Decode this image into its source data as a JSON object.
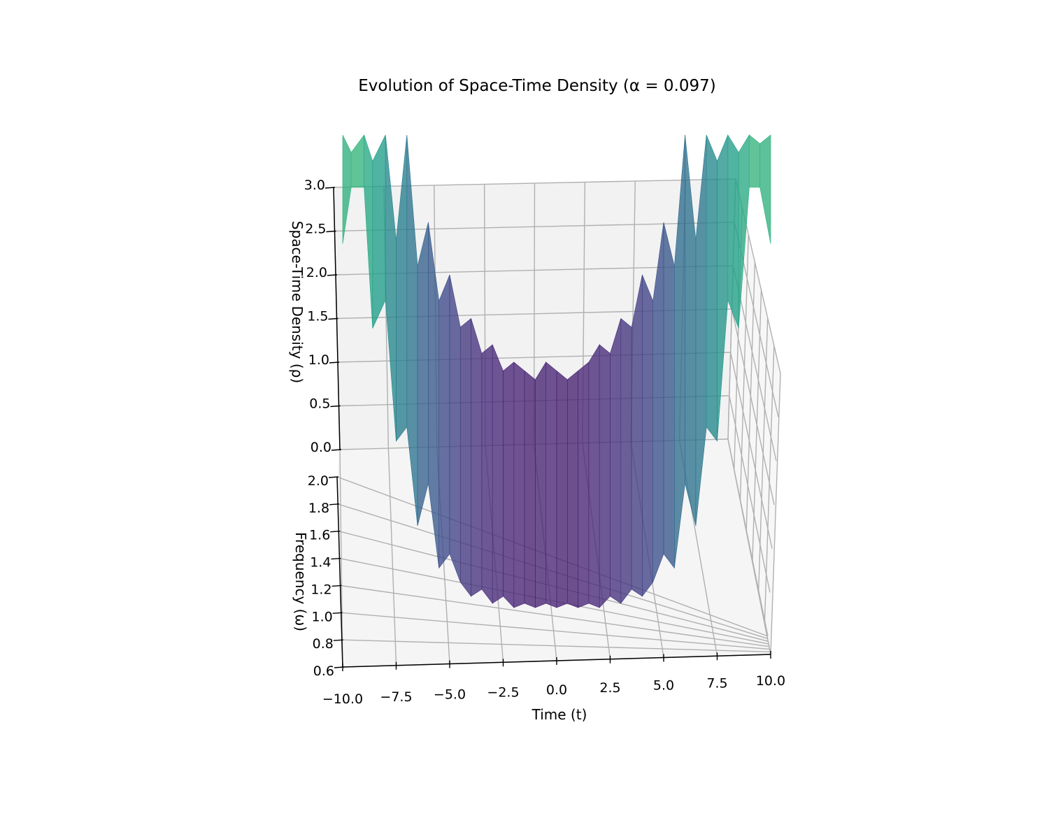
{
  "chart_data": {
    "type": "surface",
    "title": "Evolution of Space-Time Density (α = 0.097)",
    "xlabel": "Time (t)",
    "ylabel": "Frequency (ω)",
    "zlabel": "Space-Time Density (ρ)",
    "xlim": [
      -10,
      10
    ],
    "ylim": [
      0.6,
      2.0
    ],
    "zlim": [
      0,
      3
    ],
    "xticks": [
      "−10.0",
      "−7.5",
      "−5.0",
      "−2.5",
      "0.0",
      "2.5",
      "5.0",
      "7.5",
      "10.0"
    ],
    "yticks": [
      "0.6",
      "0.8",
      "1.0",
      "1.2",
      "1.4",
      "1.6",
      "1.8",
      "2.0"
    ],
    "zticks": [
      "0.0",
      "0.5",
      "1.0",
      "1.5",
      "2.0",
      "2.5",
      "3.0"
    ],
    "colormap": "viridis",
    "grid": true,
    "surface_profile": {
      "t": [
        -10,
        -9.6,
        -9,
        -8.6,
        -8,
        -7.5,
        -7,
        -6.5,
        -6,
        -5.5,
        -5,
        -4.5,
        -4,
        -3.5,
        -3,
        -2.5,
        -2,
        -1.5,
        -1,
        -0.5,
        0,
        0.5,
        1,
        1.5,
        2,
        2.5,
        3,
        3.5,
        4,
        4.5,
        5,
        5.5,
        6,
        6.5,
        7,
        7.5,
        8,
        8.5,
        9,
        9.5,
        10
      ],
      "rho_max": [
        3.6,
        3.4,
        3.6,
        3.3,
        3.6,
        2.4,
        3.6,
        2.1,
        2.6,
        1.7,
        2.0,
        1.4,
        1.5,
        1.1,
        1.2,
        0.9,
        1.0,
        0.9,
        0.8,
        1.0,
        0.9,
        0.8,
        0.9,
        1.0,
        1.2,
        1.1,
        1.5,
        1.4,
        2.0,
        1.7,
        2.6,
        2.1,
        3.6,
        2.4,
        3.6,
        3.3,
        3.6,
        3.4,
        3.6,
        3.5,
        3.6
      ],
      "rho_min": [
        2.6,
        3.0,
        3.0,
        2.0,
        2.2,
        1.2,
        1.3,
        0.6,
        0.9,
        0.3,
        0.4,
        0.2,
        0.1,
        0.15,
        0.05,
        0.1,
        0.02,
        0.05,
        0.02,
        0.05,
        0.02,
        0.05,
        0.02,
        0.05,
        0.02,
        0.1,
        0.05,
        0.15,
        0.1,
        0.2,
        0.4,
        0.3,
        0.9,
        0.6,
        1.3,
        1.2,
        2.2,
        2.0,
        3.0,
        3.0,
        2.6
      ]
    }
  }
}
